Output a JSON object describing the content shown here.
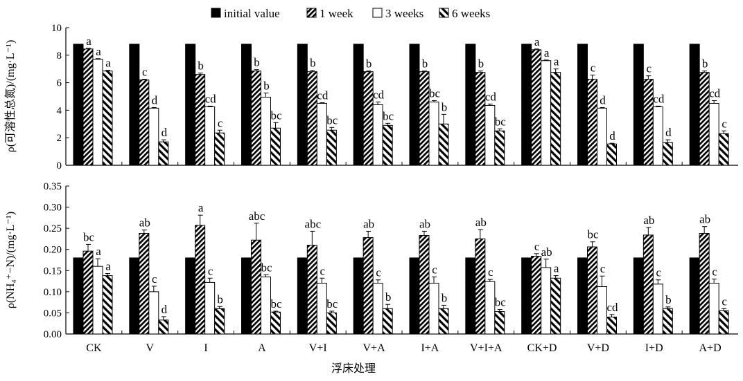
{
  "legend": [
    "initial value",
    "1 week",
    "3 weeks",
    "6 weeks"
  ],
  "xlabel": "浮床处理",
  "chart_data": [
    {
      "type": "bar",
      "panel": "top",
      "ylabel": "ρ(可溶性总氮)/(mg·L⁻¹)",
      "ylim": [
        0,
        10
      ],
      "yticks": [
        "0",
        "2",
        "4",
        "6",
        "8",
        "10"
      ],
      "categories": [
        "CK",
        "V",
        "I",
        "A",
        "V+I",
        "V+A",
        "I+A",
        "V+I+A",
        "CK+D",
        "V+D",
        "I+D",
        "A+D"
      ],
      "series": [
        {
          "name": "initial value",
          "pattern": "solid",
          "values": [
            8.8,
            8.8,
            8.8,
            8.8,
            8.8,
            8.8,
            8.8,
            8.8,
            8.8,
            8.8,
            8.8,
            8.8
          ],
          "errors": [
            0,
            0,
            0,
            0,
            0,
            0,
            0,
            0,
            0,
            0,
            0,
            0
          ],
          "letters": [
            "",
            "",
            "",
            "",
            "",
            "",
            "",
            "",
            "",
            "",
            "",
            ""
          ]
        },
        {
          "name": "1 week",
          "pattern": "backslash",
          "values": [
            8.45,
            6.2,
            6.6,
            6.85,
            6.8,
            6.8,
            6.8,
            6.75,
            8.4,
            6.25,
            6.25,
            6.75
          ],
          "errors": [
            0.05,
            0.05,
            0.1,
            0.1,
            0.1,
            0.05,
            0.05,
            0.1,
            0.05,
            0.3,
            0.25,
            0.1
          ],
          "letters": [
            "a",
            "c",
            "b",
            "b",
            "b",
            "b",
            "b",
            "b",
            "a",
            "c",
            "c",
            "b"
          ]
        },
        {
          "name": "3 weeks",
          "pattern": "open",
          "values": [
            7.7,
            4.15,
            4.25,
            4.95,
            4.5,
            4.4,
            4.6,
            4.35,
            7.6,
            4.15,
            4.25,
            4.5
          ],
          "errors": [
            0.05,
            0.05,
            0.05,
            0.3,
            0.05,
            0.2,
            0.1,
            0.1,
            0.05,
            0.05,
            0.05,
            0.2
          ],
          "letters": [
            "a",
            "d",
            "cd",
            "b",
            "cd",
            "cd",
            "bc",
            "cd",
            "a",
            "d",
            "cd",
            "cd"
          ]
        },
        {
          "name": "6 weeks",
          "pattern": "slash",
          "values": [
            6.85,
            1.7,
            2.35,
            2.7,
            2.55,
            2.9,
            3.0,
            2.5,
            6.75,
            1.55,
            1.65,
            2.3
          ],
          "errors": [
            0.05,
            0.15,
            0.2,
            0.4,
            0.2,
            0.15,
            0.7,
            0.15,
            0.25,
            0.05,
            0.2,
            0.2
          ],
          "letters": [
            "a",
            "d",
            "c",
            "bc",
            "bc",
            "bc",
            "b",
            "bc",
            "a",
            "d",
            "d",
            "c"
          ]
        }
      ]
    },
    {
      "type": "bar",
      "panel": "bottom",
      "ylabel": "ρ(NH₄⁺−N)/(mg·L⁻¹)",
      "ylim": [
        0,
        0.35
      ],
      "yticks": [
        "0.00",
        "0.05",
        "0.10",
        "0.15",
        "0.20",
        "0.25",
        "0.30",
        "0.35"
      ],
      "categories": [
        "CK",
        "V",
        "I",
        "A",
        "V+I",
        "V+A",
        "I+A",
        "V+I+A",
        "CK+D",
        "V+D",
        "I+D",
        "A+D"
      ],
      "series": [
        {
          "name": "initial value",
          "pattern": "solid",
          "values": [
            0.18,
            0.18,
            0.18,
            0.18,
            0.18,
            0.18,
            0.18,
            0.18,
            0.18,
            0.18,
            0.18,
            0.18
          ],
          "errors": [
            0,
            0,
            0,
            0,
            0,
            0,
            0,
            0,
            0,
            0,
            0,
            0
          ],
          "letters": [
            "",
            "",
            "",
            "",
            "",
            "",
            "",
            "",
            "",
            "",
            "",
            ""
          ]
        },
        {
          "name": "1 week",
          "pattern": "backslash",
          "values": [
            0.196,
            0.238,
            0.257,
            0.222,
            0.21,
            0.228,
            0.233,
            0.225,
            0.184,
            0.206,
            0.234,
            0.238
          ],
          "errors": [
            0.016,
            0.008,
            0.024,
            0.04,
            0.033,
            0.015,
            0.01,
            0.022,
            0.006,
            0.012,
            0.018,
            0.016
          ],
          "letters": [
            "bc",
            "ab",
            "a",
            "abc",
            "abc",
            "ab",
            "ab",
            "ab",
            "c",
            "bc",
            "ab",
            "ab"
          ]
        },
        {
          "name": "3 weeks",
          "pattern": "open",
          "values": [
            0.16,
            0.1,
            0.122,
            0.135,
            0.12,
            0.12,
            0.12,
            0.124,
            0.157,
            0.112,
            0.118,
            0.12
          ],
          "errors": [
            0.018,
            0.013,
            0.01,
            0.005,
            0.012,
            0.008,
            0.015,
            0.005,
            0.02,
            0.025,
            0.01,
            0.01
          ],
          "letters": [
            "a",
            "c",
            "c",
            "bc",
            "c",
            "c",
            "c",
            "c",
            "ab",
            "c",
            "c",
            "c"
          ]
        },
        {
          "name": "6 weeks",
          "pattern": "slash",
          "values": [
            0.138,
            0.033,
            0.06,
            0.052,
            0.05,
            0.06,
            0.06,
            0.053,
            0.132,
            0.04,
            0.06,
            0.055
          ],
          "errors": [
            0.005,
            0.008,
            0.005,
            0.002,
            0.004,
            0.01,
            0.008,
            0.005,
            0.006,
            0.006,
            0.004,
            0.005
          ],
          "letters": [
            "a",
            "d",
            "b",
            "bc",
            "bc",
            "b",
            "b",
            "bc",
            "a",
            "cd",
            "b",
            "c"
          ]
        }
      ]
    }
  ]
}
